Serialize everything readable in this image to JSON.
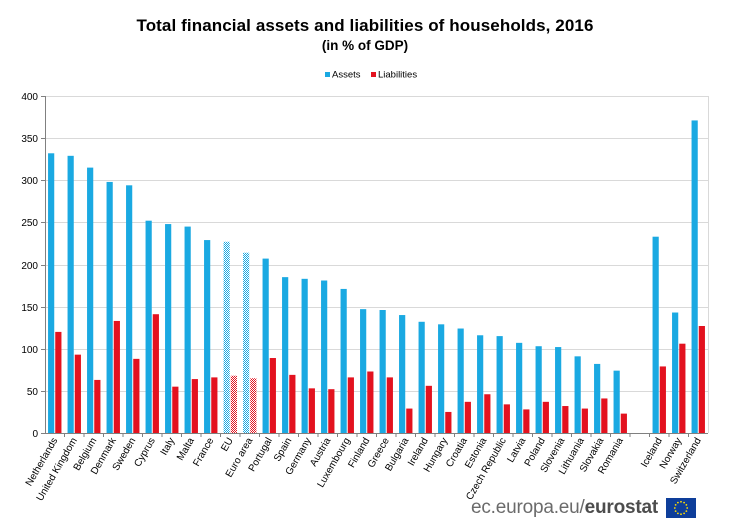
{
  "chart_data": {
    "type": "bar",
    "title": "Total financial assets and liabilities of households, 2016",
    "subtitle": "(in % of GDP)",
    "xlabel": "",
    "ylabel": "",
    "ylim": [
      0,
      400
    ],
    "yticks": [
      0,
      50,
      100,
      150,
      200,
      250,
      300,
      350,
      400
    ],
    "grid": true,
    "legend_position": "top-center",
    "categories": [
      "Netherlands",
      "United Kingdom",
      "Belgium",
      "Denmark",
      "Sweden",
      "Cyprus",
      "Italy",
      "Malta",
      "France",
      "EU",
      "Euro area",
      "Portugal",
      "Spain",
      "Germany",
      "Austria",
      "Luxembourg",
      "Finland",
      "Greece",
      "Bulgaria",
      "Ireland",
      "Hungary",
      "Croatia",
      "Estonia",
      "Czech Republic",
      "Latvia",
      "Poland",
      "Slovenia",
      "Lithuania",
      "Slovakia",
      "Romania",
      "",
      "Iceland",
      "Norway",
      "Switzerland"
    ],
    "hatched_categories": [
      "EU",
      "Euro area"
    ],
    "series": [
      {
        "name": "Assets",
        "color": "#1aa9e2",
        "values": [
          332,
          329,
          315,
          298,
          294,
          252,
          248,
          245,
          229,
          227,
          214,
          207,
          185,
          183,
          181,
          171,
          147,
          146,
          140,
          132,
          129,
          124,
          116,
          115,
          107,
          103,
          102,
          91,
          82,
          74,
          null,
          233,
          143,
          371
        ]
      },
      {
        "name": "Liabilities",
        "color": "#e3121f",
        "values": [
          120,
          93,
          63,
          133,
          88,
          141,
          55,
          64,
          66,
          68,
          65,
          89,
          69,
          53,
          52,
          66,
          73,
          66,
          29,
          56,
          25,
          37,
          46,
          34,
          28,
          37,
          32,
          29,
          41,
          23,
          null,
          79,
          106,
          127
        ]
      }
    ]
  },
  "footer": {
    "site": "ec.europa.eu/",
    "brand": "eurostat",
    "flag_color": "#0e3e9a",
    "star_color": "#ffdd00"
  }
}
